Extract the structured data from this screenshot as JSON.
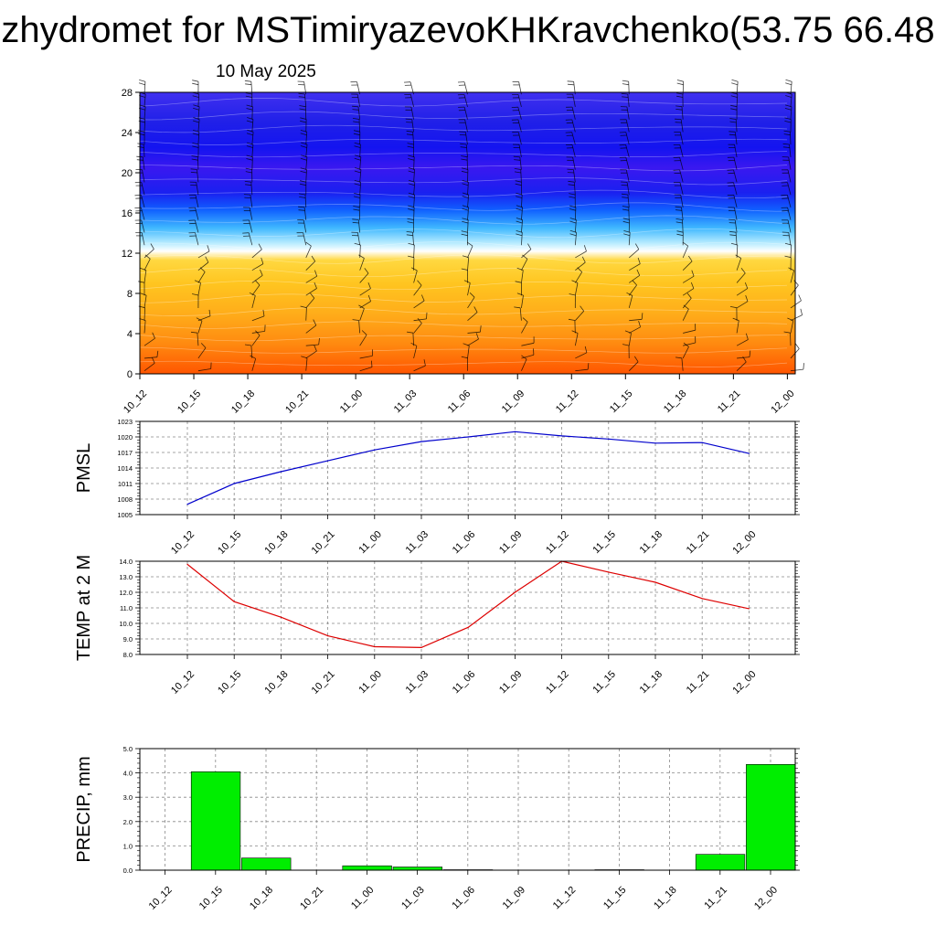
{
  "header": {
    "title": "zhydromet for MSTimiryazevoKHKravchenko(53.75 66.48",
    "subtitle": "10 May 2025"
  },
  "colors": {
    "pmsl_line": "#0000cc",
    "temp_line": "#dd0000",
    "precip_bar": "#00ee00",
    "barb": "#000000",
    "grid": "#888888"
  },
  "chart_data": [
    {
      "type": "heatmap",
      "name": "cross-section",
      "categories": [
        "10_12",
        "10_15",
        "10_18",
        "10_21",
        "11_00",
        "11_03",
        "11_06",
        "11_09",
        "11_12",
        "11_15",
        "11_18",
        "11_21",
        "12_00"
      ],
      "ylim": [
        0,
        28
      ],
      "yticks": [
        0,
        4,
        8,
        12,
        16,
        20,
        24,
        28
      ],
      "gradient": [
        {
          "level": 0,
          "color": "#ff5500"
        },
        {
          "level": 3,
          "color": "#ff8a10"
        },
        {
          "level": 6,
          "color": "#ffad1a"
        },
        {
          "level": 9,
          "color": "#ffc520"
        },
        {
          "level": 11.3,
          "color": "#ffd840"
        },
        {
          "level": 12.2,
          "color": "#ffffff"
        },
        {
          "level": 13,
          "color": "#b8ecff"
        },
        {
          "level": 14.5,
          "color": "#40b8ff"
        },
        {
          "level": 16.3,
          "color": "#1060ff"
        },
        {
          "level": 18,
          "color": "#1a20f0"
        },
        {
          "level": 20.5,
          "color": "#3a18f0"
        },
        {
          "level": 22.5,
          "color": "#1414f0"
        },
        {
          "level": 25,
          "color": "#2020e8"
        },
        {
          "level": 28,
          "color": "#4030f0"
        }
      ],
      "wind_barbs": true
    },
    {
      "type": "line",
      "name": "pmsl",
      "ylabel": "PMSL",
      "categories": [
        "10_12",
        "10_15",
        "10_18",
        "10_21",
        "11_00",
        "11_03",
        "11_06",
        "11_09",
        "11_12",
        "11_15",
        "11_18",
        "11_21",
        "12_00"
      ],
      "values": [
        1007.0,
        1011.0,
        1013.3,
        1015.4,
        1017.5,
        1019.1,
        1020.0,
        1021.0,
        1020.2,
        1019.6,
        1018.8,
        1018.9,
        1016.8
      ],
      "ylim": [
        1005,
        1023
      ],
      "yticks": [
        1005,
        1008,
        1011,
        1014,
        1017,
        1020,
        1023
      ]
    },
    {
      "type": "line",
      "name": "temp",
      "ylabel": "TEMP at 2 M",
      "categories": [
        "10_12",
        "10_15",
        "10_18",
        "10_21",
        "11_00",
        "11_03",
        "11_06",
        "11_09",
        "11_12",
        "11_15",
        "11_18",
        "11_21",
        "12_00"
      ],
      "values": [
        13.8,
        11.4,
        10.4,
        9.2,
        8.5,
        8.45,
        9.75,
        12.0,
        14.0,
        13.3,
        12.65,
        11.6,
        10.95
      ],
      "ylim": [
        8.0,
        14.0
      ],
      "yticks": [
        "8.0",
        "9.0",
        "10.0",
        "11.0",
        "12.0",
        "13.0",
        "14.0"
      ]
    },
    {
      "type": "bar",
      "name": "precip",
      "ylabel": "PRECIP, mm",
      "categories": [
        "10_12",
        "10_15",
        "10_18",
        "10_21",
        "11_00",
        "11_03",
        "11_06",
        "11_09",
        "11_12",
        "11_15",
        "11_18",
        "11_21",
        "12_00"
      ],
      "values": [
        0,
        4.05,
        0.5,
        0,
        0.18,
        0.13,
        0.02,
        0,
        0,
        0.02,
        0,
        0.65,
        4.35
      ],
      "ylim": [
        0,
        5.0
      ],
      "yticks": [
        "0.0",
        "1.0",
        "2.0",
        "3.0",
        "4.0",
        "5.0"
      ]
    }
  ]
}
